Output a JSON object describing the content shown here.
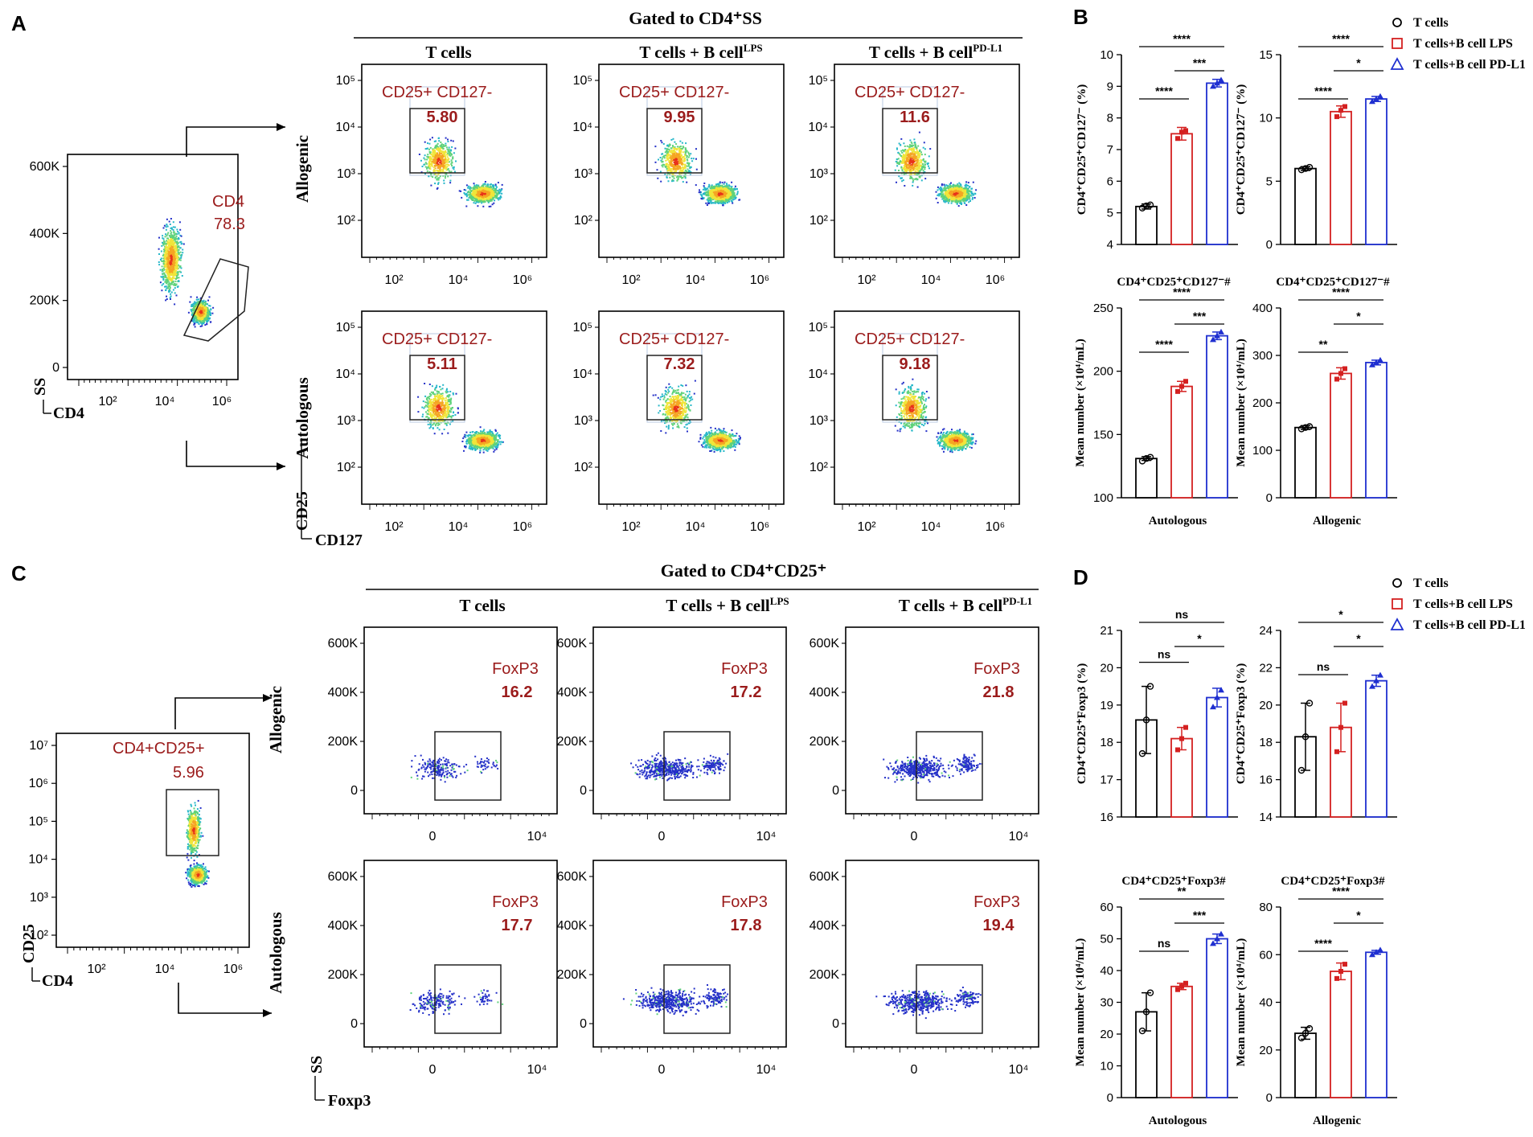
{
  "panels": {
    "a": "A",
    "b": "B",
    "c": "C",
    "d": "D"
  },
  "flow_headers": {
    "cd4_ss": "Gated to CD4⁺SS",
    "cd4_cd25": "Gated to CD4⁺CD25⁺"
  },
  "columns": [
    "T cells",
    "T cells + B cell LPS",
    "T cells + B cell PD-L1"
  ],
  "columns_c": [
    "T cells",
    "T cells + B cell LPS",
    "T cells + B cell PD-L1"
  ],
  "rows": {
    "allogeneic": "Allogenic",
    "autologous": "Autologous"
  },
  "gate_a": {
    "name": "CD4",
    "value": "78.3",
    "y_ticks": [
      "600K",
      "400K",
      "200K",
      "0"
    ],
    "x_ticks": [
      "10²",
      "10⁴",
      "10⁶"
    ],
    "x_axis": "CD4",
    "y_axis": "SS"
  },
  "gate_c": {
    "name": "CD4+CD25+",
    "value": "5.96",
    "y_ticks": [
      "10⁷",
      "10⁶",
      "10⁵",
      "10⁴",
      "10³",
      "10²"
    ],
    "x_ticks": [
      "10²",
      "10⁴",
      "10⁶"
    ],
    "x_axis": "CD4",
    "y_axis": "CD25"
  },
  "treg_a": {
    "gate_label": "CD25+ CD127-",
    "allogeneic": [
      "5.80",
      "9.95",
      "11.6"
    ],
    "autologous": [
      "5.11",
      "7.32",
      "9.18"
    ],
    "y_ticks": [
      "10⁵",
      "10⁴",
      "10³",
      "10²"
    ],
    "x_ticks": [
      "10²",
      "10⁴",
      "10⁶"
    ],
    "x_axis": "CD127",
    "y_axis": "CD25"
  },
  "foxp3_c": {
    "gate_label": "FoxP3",
    "allogeneic": [
      "16.2",
      "17.2",
      "21.8"
    ],
    "autologous": [
      "17.7",
      "17.8",
      "19.4"
    ],
    "y_ticks": [
      "600K",
      "400K",
      "200K",
      "0"
    ],
    "x_ticks": [
      "0",
      "10⁴"
    ],
    "x_axis": "Foxp3",
    "y_axis": "SS"
  },
  "legend": {
    "items": [
      "T cells",
      "T cells+B cell LPS",
      "T cells+B cell PD-L1"
    ],
    "colors": [
      "#000000",
      "#d42020",
      "#1f2fd0"
    ]
  },
  "chart_data": [
    {
      "type": "bar",
      "id": "B1",
      "title": "",
      "ylabel": "CD4⁺CD25⁺CD127⁻ (%)",
      "xlabel": "",
      "ylim": [
        4,
        10
      ],
      "yticks": [
        4,
        5,
        6,
        7,
        8,
        9,
        10
      ],
      "categories": [
        "T cells",
        "T cells+B cell LPS",
        "T cells+B cell PD-L1"
      ],
      "values": [
        5.2,
        7.5,
        9.1
      ],
      "errors": [
        0.08,
        0.2,
        0.12
      ],
      "points": [
        [
          5.15,
          5.22,
          5.25
        ],
        [
          7.35,
          7.55,
          7.6
        ],
        [
          9.0,
          9.1,
          9.2
        ]
      ],
      "sig": [
        {
          "from": 0,
          "to": 2,
          "label": "****"
        },
        {
          "from": 1,
          "to": 2,
          "label": "***"
        },
        {
          "from": 0,
          "to": 1,
          "label": "****"
        }
      ]
    },
    {
      "type": "bar",
      "id": "B2",
      "title": "",
      "ylabel": "CD4⁺CD25⁺CD127⁻ (%)",
      "xlabel": "",
      "ylim": [
        0,
        15
      ],
      "yticks": [
        0,
        5,
        10,
        15
      ],
      "categories": [
        "T cells",
        "T cells+B cell LPS",
        "T cells+B cell PD-L1"
      ],
      "values": [
        6.0,
        10.5,
        11.5
      ],
      "errors": [
        0.15,
        0.45,
        0.2
      ],
      "points": [
        [
          5.9,
          6.0,
          6.1
        ],
        [
          10.1,
          10.6,
          10.9
        ],
        [
          11.3,
          11.5,
          11.7
        ]
      ],
      "sig": [
        {
          "from": 0,
          "to": 2,
          "label": "****"
        },
        {
          "from": 1,
          "to": 2,
          "label": "*"
        },
        {
          "from": 0,
          "to": 1,
          "label": "****"
        }
      ]
    },
    {
      "type": "bar",
      "id": "B3",
      "title": "CD4⁺CD25⁺CD127⁻#",
      "ylabel": "Mean number (×10⁴/mL)",
      "xlabel": "Autologous",
      "ylim": [
        100,
        250
      ],
      "yticks": [
        100,
        150,
        200,
        250
      ],
      "categories": [
        "T cells",
        "T cells+B cell LPS",
        "T cells+B cell PD-L1"
      ],
      "values": [
        131,
        188,
        228
      ],
      "errors": [
        1.5,
        4,
        3
      ],
      "points": [
        [
          129,
          131,
          132
        ],
        [
          184,
          188,
          192
        ],
        [
          225,
          228,
          231
        ]
      ],
      "sig": [
        {
          "from": 0,
          "to": 2,
          "label": "****"
        },
        {
          "from": 1,
          "to": 2,
          "label": "***"
        },
        {
          "from": 0,
          "to": 1,
          "label": "****"
        }
      ]
    },
    {
      "type": "bar",
      "id": "B4",
      "title": "CD4⁺CD25⁺CD127⁻#",
      "ylabel": "Mean number (×10⁴/mL)",
      "xlabel": "Allogenic",
      "ylim": [
        0,
        400
      ],
      "yticks": [
        0,
        100,
        200,
        300,
        400
      ],
      "categories": [
        "T cells",
        "T cells+B cell LPS",
        "T cells+B cell PD-L1"
      ],
      "values": [
        148,
        262,
        285
      ],
      "errors": [
        4,
        12,
        5
      ],
      "points": [
        [
          145,
          148,
          150
        ],
        [
          250,
          262,
          272
        ],
        [
          280,
          285,
          290
        ]
      ],
      "sig": [
        {
          "from": 0,
          "to": 2,
          "label": "****"
        },
        {
          "from": 1,
          "to": 2,
          "label": "*"
        },
        {
          "from": 0,
          "to": 1,
          "label": "**"
        }
      ]
    },
    {
      "type": "bar",
      "id": "D1",
      "title": "",
      "ylabel": "CD4⁺CD25⁺Foxp3 (%)",
      "xlabel": "",
      "ylim": [
        16,
        21
      ],
      "yticks": [
        16,
        17,
        18,
        19,
        20,
        21
      ],
      "categories": [
        "T cells",
        "T cells+B cell LPS",
        "T cells+B cell PD-L1"
      ],
      "values": [
        18.6,
        18.1,
        19.2
      ],
      "errors": [
        0.9,
        0.3,
        0.25
      ],
      "points": [
        [
          17.7,
          18.6,
          19.5
        ],
        [
          17.8,
          18.1,
          18.4
        ],
        [
          18.95,
          19.2,
          19.4
        ]
      ],
      "sig": [
        {
          "from": 0,
          "to": 2,
          "label": "ns"
        },
        {
          "from": 1,
          "to": 2,
          "label": "*"
        },
        {
          "from": 0,
          "to": 1,
          "label": "ns"
        }
      ]
    },
    {
      "type": "bar",
      "id": "D2",
      "title": "",
      "ylabel": "CD4⁺CD25⁺Foxp3 (%)",
      "xlabel": "",
      "ylim": [
        14,
        24
      ],
      "yticks": [
        14,
        16,
        18,
        20,
        22,
        24
      ],
      "categories": [
        "T cells",
        "T cells+B cell LPS",
        "T cells+B cell PD-L1"
      ],
      "values": [
        18.3,
        18.8,
        21.3
      ],
      "errors": [
        1.8,
        1.3,
        0.3
      ],
      "points": [
        [
          16.5,
          18.3,
          20.1
        ],
        [
          17.5,
          18.8,
          20.1
        ],
        [
          21.0,
          21.3,
          21.6
        ]
      ],
      "sig": [
        {
          "from": 0,
          "to": 2,
          "label": "*"
        },
        {
          "from": 1,
          "to": 2,
          "label": "*"
        },
        {
          "from": 0,
          "to": 1,
          "label": "ns"
        }
      ]
    },
    {
      "type": "bar",
      "id": "D3",
      "title": "CD4⁺CD25⁺Foxp3#",
      "ylabel": "Mean number (×10⁴/mL)",
      "xlabel": "Autologous",
      "ylim": [
        0,
        60
      ],
      "yticks": [
        0,
        10,
        20,
        30,
        40,
        50,
        60
      ],
      "categories": [
        "T cells",
        "T cells+B cell LPS",
        "T cells+B cell PD-L1"
      ],
      "values": [
        27,
        35,
        50
      ],
      "errors": [
        6,
        1,
        1.5
      ],
      "points": [
        [
          21,
          27,
          33
        ],
        [
          34,
          35,
          36
        ],
        [
          48.5,
          50,
          51.5
        ]
      ],
      "sig": [
        {
          "from": 0,
          "to": 2,
          "label": "**"
        },
        {
          "from": 1,
          "to": 2,
          "label": "***"
        },
        {
          "from": 0,
          "to": 1,
          "label": "ns"
        }
      ]
    },
    {
      "type": "bar",
      "id": "D4",
      "title": "CD4⁺CD25⁺Foxp3#",
      "ylabel": "Mean number (×10⁴/mL)",
      "xlabel": "Allogenic",
      "ylim": [
        0,
        80
      ],
      "yticks": [
        0,
        20,
        40,
        60,
        80
      ],
      "categories": [
        "T cells",
        "T cells+B cell LPS",
        "T cells+B cell PD-L1"
      ],
      "values": [
        27,
        53,
        61
      ],
      "errors": [
        2.5,
        3.5,
        0.8
      ],
      "points": [
        [
          25,
          27,
          29
        ],
        [
          50,
          53,
          56
        ],
        [
          60,
          61,
          62
        ]
      ],
      "sig": [
        {
          "from": 0,
          "to": 2,
          "label": "****"
        },
        {
          "from": 1,
          "to": 2,
          "label": "*"
        },
        {
          "from": 0,
          "to": 1,
          "label": "****"
        }
      ]
    }
  ]
}
